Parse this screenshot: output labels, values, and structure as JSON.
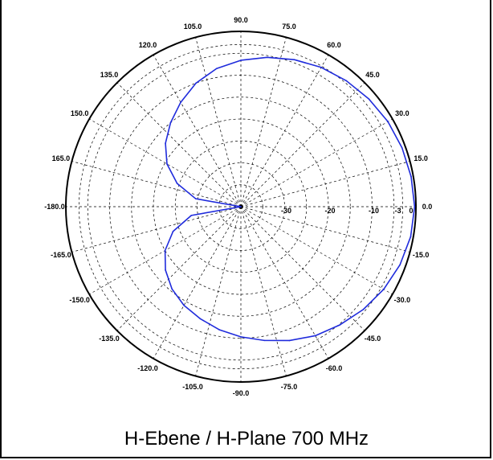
{
  "caption": "H-Ebene / H-Plane 700 MHz",
  "chart_data": {
    "type": "polar",
    "title": "H-Ebene / H-Plane 700 MHz",
    "r_unit": "dB",
    "r_range": [
      -40,
      0
    ],
    "r_ticks": [
      -30,
      -20,
      -10,
      -3,
      0
    ],
    "r_tick_labels": [
      "-30",
      "-20",
      "-10",
      "-3",
      "0"
    ],
    "angle_ticks": [
      0,
      15,
      30,
      45,
      60,
      75,
      90,
      105,
      120,
      135,
      150,
      165,
      -180,
      -165,
      -150,
      -135,
      -120,
      -105,
      -90,
      -75,
      -60,
      -45,
      -30,
      -15
    ],
    "angle_tick_labels": [
      "0.0",
      "15.0",
      "30.0",
      "45.0",
      "60.0",
      "75.0",
      "90.0",
      "105.0",
      "120.0",
      "135.0",
      "150.0",
      "165.0",
      "-180.0",
      "-165.0",
      "-150.0",
      "-135.0",
      "-120.0",
      "-105.0",
      "-90.0",
      "-75.0",
      "-60.0",
      "-45.0",
      "-30.0",
      "-15.0"
    ],
    "grid": true,
    "series": [
      {
        "color": "#1f2bdc",
        "angle_deg": [
          0,
          10,
          20,
          30,
          40,
          50,
          60,
          70,
          80,
          90,
          100,
          110,
          120,
          130,
          140,
          150,
          160,
          170,
          180,
          190,
          200,
          210,
          220,
          230,
          240,
          250,
          260,
          270,
          280,
          290,
          300,
          310,
          320,
          330,
          340,
          350,
          360
        ],
        "gain_db": [
          -0.3,
          -0.5,
          -0.8,
          -1.2,
          -1.8,
          -2.5,
          -3.3,
          -4.3,
          -5.4,
          -6.6,
          -8.0,
          -10.0,
          -12.5,
          -15.0,
          -17.5,
          -20.5,
          -24.5,
          -29.5,
          -40.0,
          -28.5,
          -23.5,
          -20.0,
          -17.5,
          -15.5,
          -14.0,
          -12.8,
          -11.5,
          -10.3,
          -9.0,
          -7.5,
          -6.0,
          -4.8,
          -3.5,
          -2.3,
          -1.3,
          -0.6,
          -0.3
        ]
      }
    ]
  }
}
